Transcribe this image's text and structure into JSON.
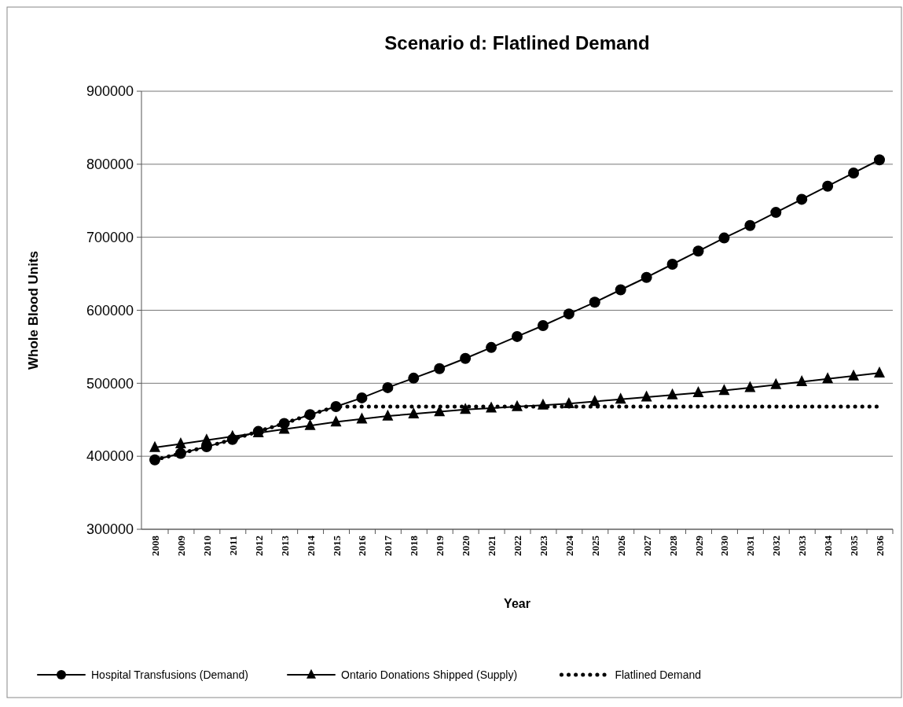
{
  "chart_data": {
    "type": "line",
    "title": "Scenario d: Flatlined Demand",
    "xlabel": "Year",
    "ylabel": "Whole Blood Units",
    "categories": [
      "2008",
      "2009",
      "2010",
      "2011",
      "2012",
      "2013",
      "2014",
      "2015",
      "2016",
      "2017",
      "2018",
      "2019",
      "2020",
      "2021",
      "2022",
      "2023",
      "2024",
      "2025",
      "2026",
      "2027",
      "2028",
      "2029",
      "2030",
      "2031",
      "2032",
      "2033",
      "2034",
      "2035",
      "2036"
    ],
    "series": [
      {
        "name": "Hospital Transfusions (Demand)",
        "color": "#000000",
        "marker": "circle",
        "line_style": "solid",
        "values": [
          395000,
          404000,
          413000,
          423000,
          434000,
          445000,
          457000,
          468000,
          480000,
          494000,
          507000,
          520000,
          534000,
          549000,
          564000,
          579000,
          595000,
          611000,
          628000,
          645000,
          663000,
          681000,
          699000,
          716000,
          734000,
          752000,
          770000,
          788000,
          806000
        ]
      },
      {
        "name": "Ontario Donations Shipped (Supply)",
        "color": "#000000",
        "marker": "triangle",
        "line_style": "solid",
        "values": [
          412000,
          417000,
          422000,
          427000,
          432000,
          437000,
          442000,
          447000,
          451000,
          455000,
          458000,
          461000,
          464000,
          466000,
          468000,
          470000,
          472000,
          475000,
          478000,
          481000,
          484000,
          487000,
          490000,
          494000,
          498000,
          502000,
          506000,
          510000,
          514000
        ]
      },
      {
        "name": "Flatlined Demand",
        "color": "#000000",
        "marker": "none",
        "line_style": "dotted",
        "values": [
          395000,
          404000,
          413000,
          423000,
          434000,
          445000,
          457000,
          468000,
          468000,
          468000,
          468000,
          468000,
          468000,
          468000,
          468000,
          468000,
          468000,
          468000,
          468000,
          468000,
          468000,
          468000,
          468000,
          468000,
          468000,
          468000,
          468000,
          468000,
          468000
        ]
      }
    ],
    "ylim": [
      300000,
      900000
    ],
    "yticks": [
      300000,
      400000,
      500000,
      600000,
      700000,
      800000,
      900000
    ],
    "grid": "y",
    "legend": "bottom"
  }
}
